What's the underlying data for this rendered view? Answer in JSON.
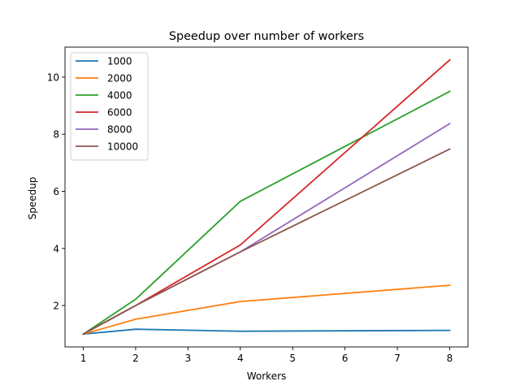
{
  "chart_data": {
    "type": "line",
    "title": "Speedup over number of workers",
    "xlabel": "Workers",
    "ylabel": "Speedup",
    "xlim": [
      0.65,
      8.35
    ],
    "ylim": [
      0.55,
      11.05
    ],
    "xticks": [
      1,
      2,
      3,
      4,
      5,
      6,
      7,
      8
    ],
    "yticks": [
      2,
      4,
      6,
      8,
      10
    ],
    "grid": false,
    "legend": "top-left",
    "x": [
      1,
      2,
      4,
      8
    ],
    "series": [
      {
        "name": "1000",
        "color": "#1f77b4",
        "values": [
          1.0,
          1.17,
          1.1,
          1.13
        ]
      },
      {
        "name": "2000",
        "color": "#ff7f0e",
        "values": [
          1.0,
          1.52,
          2.14,
          2.71
        ]
      },
      {
        "name": "4000",
        "color": "#2ca02c",
        "values": [
          1.0,
          2.22,
          5.65,
          9.5
        ]
      },
      {
        "name": "6000",
        "color": "#d62728",
        "values": [
          1.0,
          2.0,
          4.12,
          10.6
        ]
      },
      {
        "name": "8000",
        "color": "#9467bd",
        "values": [
          1.0,
          2.0,
          3.88,
          8.37
        ]
      },
      {
        "name": "10000",
        "color": "#8c564b",
        "values": [
          1.0,
          2.0,
          3.88,
          7.48
        ]
      }
    ]
  }
}
